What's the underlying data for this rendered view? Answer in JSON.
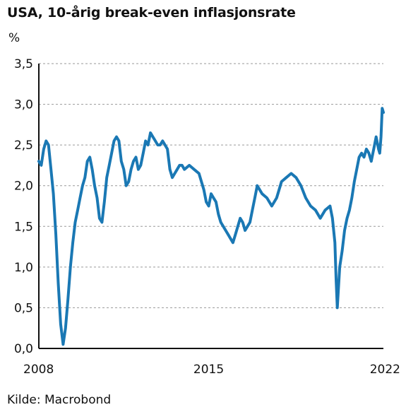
{
  "chart_data": {
    "type": "line",
    "title": "USA, 10-årig break-even inflasjonsrate",
    "unit_label": "%",
    "source": "Kilde: Macrobond",
    "xlabel": "",
    "ylabel": "%",
    "xlim": [
      2008.0,
      2022.2
    ],
    "ylim": [
      0,
      3.5
    ],
    "x_ticks": [
      {
        "value": 2008,
        "label": "2008"
      },
      {
        "value": 2015,
        "label": "2015"
      },
      {
        "value": 2022,
        "label": "2022"
      }
    ],
    "y_ticks": [
      {
        "value": 0.0,
        "label": "0,0"
      },
      {
        "value": 0.5,
        "label": "0,5"
      },
      {
        "value": 1.0,
        "label": "1,0"
      },
      {
        "value": 1.5,
        "label": "1,5"
      },
      {
        "value": 2.0,
        "label": "2,0"
      },
      {
        "value": 2.5,
        "label": "2,5"
      },
      {
        "value": 3.0,
        "label": "3,0"
      },
      {
        "value": 3.5,
        "label": "3,5"
      }
    ],
    "grid": "horizontal dashed",
    "line_color": "#1a78b4",
    "series": [
      {
        "x": [
          2008.0,
          2008.1,
          2008.2,
          2008.3,
          2008.4,
          2008.5,
          2008.6,
          2008.7,
          2008.8,
          2008.9,
          2009.0,
          2009.1,
          2009.2,
          2009.3,
          2009.4,
          2009.5,
          2009.6,
          2009.7,
          2009.8,
          2009.9,
          2010.0,
          2010.1,
          2010.2,
          2010.3,
          2010.4,
          2010.5,
          2010.6,
          2010.7,
          2010.8,
          2010.9,
          2011.0,
          2011.1,
          2011.2,
          2011.3,
          2011.4,
          2011.5,
          2011.6,
          2011.7,
          2011.8,
          2011.9,
          2012.0,
          2012.1,
          2012.2,
          2012.3,
          2012.4,
          2012.5,
          2012.6,
          2012.7,
          2012.8,
          2012.9,
          2013.0,
          2013.1,
          2013.2,
          2013.3,
          2013.4,
          2013.5,
          2013.6,
          2013.7,
          2013.8,
          2013.9,
          2014.0,
          2014.2,
          2014.4,
          2014.6,
          2014.8,
          2014.9,
          2015.0,
          2015.1,
          2015.2,
          2015.3,
          2015.4,
          2015.5,
          2015.6,
          2015.7,
          2015.8,
          2015.9,
          2016.0,
          2016.1,
          2016.2,
          2016.3,
          2016.4,
          2016.5,
          2016.6,
          2016.7,
          2016.8,
          2016.9,
          2017.0,
          2017.2,
          2017.4,
          2017.6,
          2017.8,
          2018.0,
          2018.2,
          2018.4,
          2018.6,
          2018.8,
          2019.0,
          2019.2,
          2019.4,
          2019.6,
          2019.8,
          2020.0,
          2020.1,
          2020.2,
          2020.25,
          2020.3,
          2020.4,
          2020.5,
          2020.6,
          2020.7,
          2020.8,
          2020.9,
          2021.0,
          2021.1,
          2021.2,
          2021.3,
          2021.4,
          2021.5,
          2021.6,
          2021.7,
          2021.8,
          2021.9,
          2022.0,
          2022.05,
          2022.1,
          2022.15,
          2022.2
        ],
        "y": [
          2.3,
          2.25,
          2.45,
          2.55,
          2.5,
          2.2,
          1.9,
          1.4,
          0.8,
          0.3,
          0.05,
          0.25,
          0.6,
          1.0,
          1.3,
          1.55,
          1.7,
          1.85,
          2.0,
          2.1,
          2.3,
          2.35,
          2.2,
          2.0,
          1.85,
          1.6,
          1.55,
          1.8,
          2.1,
          2.25,
          2.4,
          2.55,
          2.6,
          2.55,
          2.3,
          2.2,
          2.0,
          2.05,
          2.2,
          2.3,
          2.35,
          2.2,
          2.25,
          2.4,
          2.55,
          2.5,
          2.65,
          2.6,
          2.55,
          2.5,
          2.5,
          2.55,
          2.5,
          2.45,
          2.2,
          2.1,
          2.15,
          2.2,
          2.25,
          2.25,
          2.2,
          2.25,
          2.2,
          2.15,
          1.95,
          1.8,
          1.75,
          1.9,
          1.85,
          1.8,
          1.65,
          1.55,
          1.5,
          1.45,
          1.4,
          1.35,
          1.3,
          1.4,
          1.5,
          1.6,
          1.55,
          1.45,
          1.5,
          1.55,
          1.7,
          1.85,
          2.0,
          1.9,
          1.85,
          1.75,
          1.85,
          2.05,
          2.1,
          2.15,
          2.1,
          2.0,
          1.85,
          1.75,
          1.7,
          1.6,
          1.7,
          1.75,
          1.6,
          1.3,
          0.85,
          0.5,
          1.0,
          1.2,
          1.45,
          1.6,
          1.7,
          1.85,
          2.05,
          2.2,
          2.35,
          2.4,
          2.35,
          2.45,
          2.4,
          2.3,
          2.45,
          2.6,
          2.45,
          2.4,
          2.6,
          2.95,
          2.9
        ]
      }
    ]
  }
}
